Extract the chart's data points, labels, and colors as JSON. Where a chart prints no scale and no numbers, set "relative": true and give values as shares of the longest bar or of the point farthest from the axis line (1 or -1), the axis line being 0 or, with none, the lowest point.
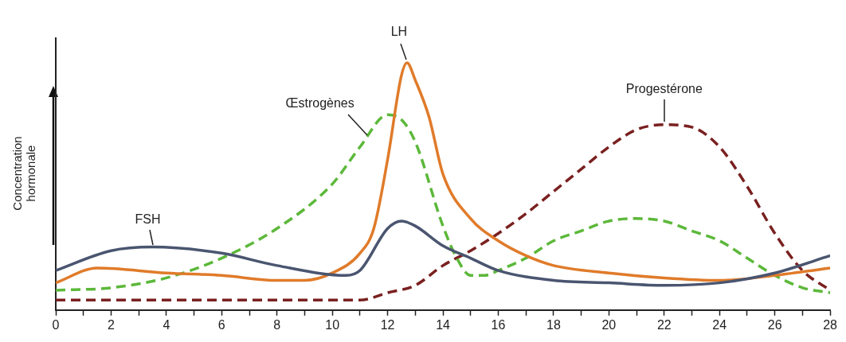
{
  "chart_data": {
    "type": "line",
    "relative": true,
    "ylabel": "Concentration hormonale",
    "xlim": [
      0,
      28
    ],
    "xticks": [
      0,
      {
        "value": 1,
        "label": null
      },
      2,
      {
        "value": 3,
        "label": null
      },
      4,
      {
        "value": 5,
        "label": null
      },
      6,
      {
        "value": 7,
        "label": null
      },
      8,
      {
        "value": 9,
        "label": null
      },
      10,
      {
        "value": 11,
        "label": null
      },
      12,
      {
        "value": 13,
        "label": null
      },
      14,
      {
        "value": 15,
        "label": null
      },
      16,
      {
        "value": 17,
        "label": null
      },
      18,
      {
        "value": 19,
        "label": null
      },
      20,
      {
        "value": 21,
        "label": null
      },
      22,
      {
        "value": 23,
        "label": null
      },
      24,
      {
        "value": 25,
        "label": null
      },
      26,
      {
        "value": 27,
        "label": null
      },
      28
    ],
    "grid": false,
    "legend": false,
    "marker": "none",
    "series": [
      {
        "name": "FSH",
        "color": "#4a5570",
        "line_style": "solid",
        "x": [
          0,
          2,
          3.5,
          6,
          8,
          10.5,
          11,
          12,
          12.5,
          13,
          14,
          15,
          16,
          18,
          20,
          22,
          24,
          26,
          28
        ],
        "values": [
          0.16,
          0.24,
          0.255,
          0.23,
          0.18,
          0.14,
          0.16,
          0.33,
          0.36,
          0.34,
          0.26,
          0.21,
          0.16,
          0.12,
          0.11,
          0.1,
          0.11,
          0.15,
          0.22
        ]
      },
      {
        "name": "LH",
        "color": "#e07b2a",
        "line_style": "solid",
        "x": [
          0,
          1.5,
          4,
          6,
          8,
          9,
          10,
          11,
          11.5,
          12,
          12.5,
          12.7,
          13,
          13.5,
          14,
          15,
          16,
          17,
          18,
          20,
          22,
          24,
          26,
          28
        ],
        "values": [
          0.11,
          0.17,
          0.15,
          0.14,
          0.12,
          0.12,
          0.15,
          0.23,
          0.33,
          0.61,
          0.95,
          1,
          0.93,
          0.78,
          0.55,
          0.37,
          0.28,
          0.22,
          0.18,
          0.15,
          0.13,
          0.12,
          0.14,
          0.17
        ]
      },
      {
        "name": "Œstrogènes",
        "color": "#5cb83a",
        "line_style": "dashed",
        "x": [
          0,
          2,
          4,
          6,
          8,
          10,
          11,
          12,
          12.5,
          13,
          14,
          14.5,
          15,
          15.5,
          16,
          17,
          18,
          19,
          20,
          21,
          22,
          23,
          24,
          25,
          26,
          27,
          28
        ],
        "values": [
          0.08,
          0.09,
          0.13,
          0.21,
          0.33,
          0.51,
          0.66,
          0.79,
          0.77,
          0.68,
          0.34,
          0.21,
          0.14,
          0.14,
          0.16,
          0.21,
          0.28,
          0.32,
          0.36,
          0.37,
          0.36,
          0.32,
          0.28,
          0.21,
          0.14,
          0.09,
          0.07
        ]
      },
      {
        "name": "Progestérone",
        "color": "#7a2020",
        "line_style": "dashed",
        "x": [
          0,
          4,
          8,
          11,
          12,
          13,
          14,
          15,
          16,
          17,
          18,
          19,
          20,
          21,
          22,
          23,
          24,
          25,
          26,
          27,
          28
        ],
        "values": [
          0.04,
          0.04,
          0.04,
          0.04,
          0.07,
          0.1,
          0.18,
          0.24,
          0.31,
          0.39,
          0.48,
          0.57,
          0.66,
          0.73,
          0.75,
          0.74,
          0.66,
          0.5,
          0.31,
          0.16,
          0.08
        ]
      }
    ]
  }
}
